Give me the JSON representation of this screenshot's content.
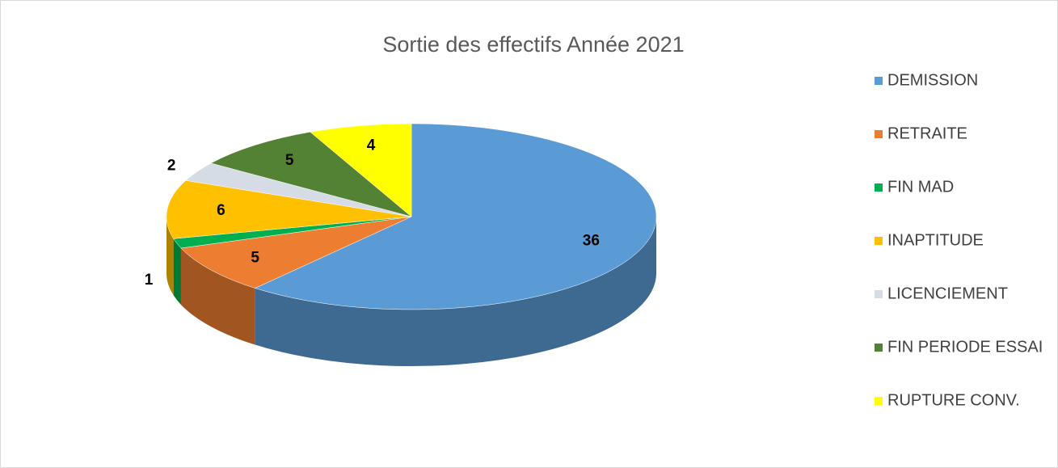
{
  "chart_data": {
    "type": "pie",
    "title": "Sortie des effectifs Année 2021",
    "categories": [
      "DEMISSION",
      "RETRAITE",
      "FIN MAD",
      "INAPTITUDE",
      "LICENCIEMENT",
      "FIN PERIODE ESSAI",
      "RUPTURE CONV."
    ],
    "values": [
      36,
      5,
      1,
      6,
      2,
      5,
      4
    ],
    "colors": [
      "#5b9bd5",
      "#ed7d31",
      "#00b050",
      "#ffc000",
      "#d6dce5",
      "#548235",
      "#ffff00"
    ],
    "legend": "right"
  }
}
